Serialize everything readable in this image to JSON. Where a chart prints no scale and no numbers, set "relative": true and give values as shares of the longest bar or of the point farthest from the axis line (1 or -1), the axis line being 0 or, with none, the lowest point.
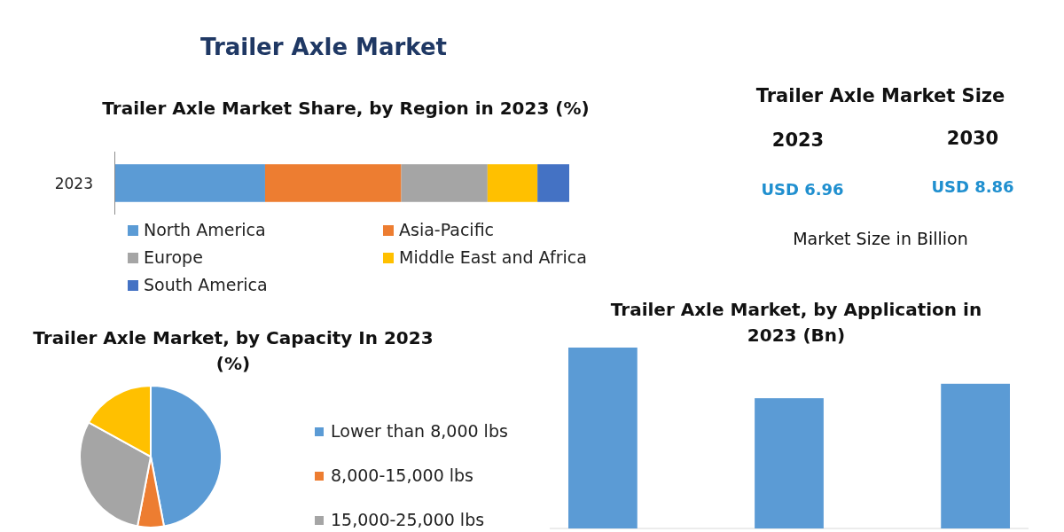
{
  "chart_data": [
    {
      "type": "other",
      "title": "Trailer Axle Market"
    },
    {
      "type": "bar",
      "title": "Trailer Axle Market Share, by Region in 2023 (%)",
      "orientation": "horizontal",
      "stacked": true,
      "relative": true,
      "legend": "bottom",
      "categories": [
        "2023"
      ],
      "series": [
        {
          "name": "North America",
          "color": "#5b9bd5",
          "values": [
            0.33
          ]
        },
        {
          "name": "Asia-Pacific",
          "color": "#ed7d31",
          "values": [
            0.3
          ]
        },
        {
          "name": "Europe",
          "color": "#a5a5a5",
          "values": [
            0.19
          ]
        },
        {
          "name": "Middle East and Africa",
          "color": "#ffc000",
          "values": [
            0.11
          ]
        },
        {
          "name": "South America",
          "color": "#4472c4",
          "values": [
            0.07
          ]
        }
      ]
    },
    {
      "type": "other",
      "title": "Trailer Axle Market Size",
      "annotations": [
        "2023",
        "2030",
        "USD 6.96",
        "USD 8.86",
        "Market Size in Billion"
      ]
    },
    {
      "type": "pie",
      "title": "Trailer Axle Market, by Capacity In 2023 (%)",
      "legend": "right",
      "categories": [
        "Lower than 8,000 lbs",
        "8,000-15,000 lbs",
        "15,000-25,000 lbs",
        null
      ],
      "values": [
        47,
        6,
        30,
        17
      ],
      "colors": [
        "#5b9bd5",
        "#ed7d31",
        "#a5a5a5",
        "#ffc000"
      ]
    },
    {
      "type": "bar",
      "title": "Trailer Axle Market, by Application in 2023 (Bn)",
      "relative": true,
      "categories": [
        null,
        null,
        null
      ],
      "values": [
        1,
        0.72,
        0.8
      ],
      "color": "#5b9bd5"
    }
  ]
}
